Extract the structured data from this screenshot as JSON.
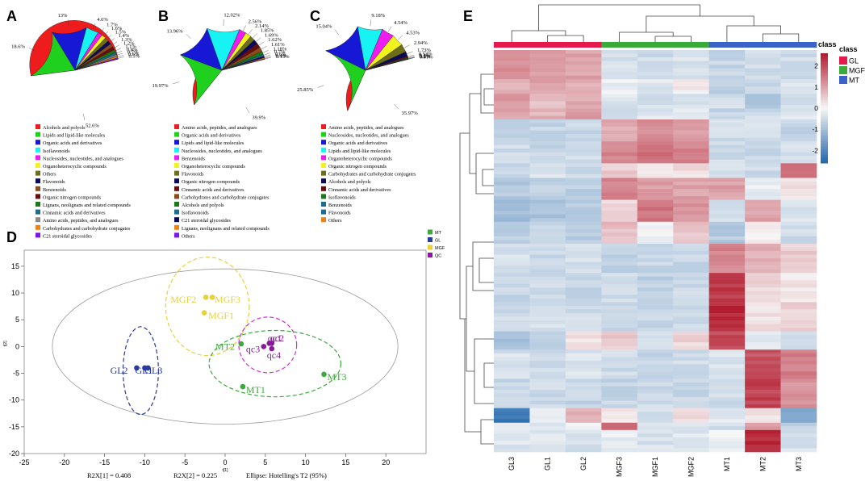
{
  "colors": {
    "red": "#ee1c1c",
    "green": "#1fd01f",
    "blue": "#1717d6",
    "cyan": "#17f2f2",
    "magenta": "#ee1cee",
    "yellow": "#f2f21c",
    "olive": "#6e6e1a",
    "navy": "#0b0b5a",
    "brown": "#8b4b16",
    "maroon": "#6b0b0b",
    "darkgreen": "#187a18",
    "teal": "#1c6e8c",
    "orange": "#ee8212",
    "purple": "#8212ee",
    "gray": "#8a8a8a",
    "heat_low": "#2166ac",
    "heat_mid": "#f7f7f7",
    "heat_high": "#b2182b",
    "class_GL": "#e41a4c",
    "class_MGF": "#3aaa3a",
    "class_MT": "#3a62c8"
  },
  "panels": {
    "A": {
      "letter": "A"
    },
    "B": {
      "letter": "B"
    },
    "C": {
      "letter": "C"
    },
    "D": {
      "letter": "D"
    },
    "E": {
      "letter": "E"
    }
  },
  "chart_data": [
    {
      "type": "pie",
      "panel": "A",
      "slices": [
        {
          "label": "Alcohols and polyols",
          "value": 52.6,
          "text": "52.6%",
          "color": "red"
        },
        {
          "label": "Lipids and lipid-like molecules",
          "value": 18.6,
          "text": "18.6%",
          "color": "green"
        },
        {
          "label": "Organic acids and derivatives",
          "value": 13.0,
          "text": "13%",
          "color": "blue"
        },
        {
          "label": "Isoflavonoids",
          "value": 4.6,
          "text": "4.6%",
          "color": "cyan"
        },
        {
          "label": "Nucleosides, nucleotides, and analogues",
          "value": 1.7,
          "text": "1.7%",
          "color": "magenta"
        },
        {
          "label": "Organoheterocyclic compounds",
          "value": 1.6,
          "text": "1.6%",
          "color": "yellow"
        },
        {
          "label": "Others",
          "value": 1.5,
          "text": "1.5%",
          "color": "olive"
        },
        {
          "label": "Flavonoids",
          "value": 1.4,
          "text": "1.4%",
          "color": "navy"
        },
        {
          "label": "Benzenoids",
          "value": 1.3,
          "text": "1.3%",
          "color": "brown"
        },
        {
          "label": "Organic nitrogen compounds",
          "value": 1.2,
          "text": "1.2%",
          "color": "maroon"
        },
        {
          "label": "Lignans, neolignans and related compounds",
          "value": 1.1,
          "text": "1.1%",
          "color": "darkgreen"
        },
        {
          "label": "Cinnamic acids and derivatives",
          "value": 0.8,
          "text": "0.8%",
          "color": "teal"
        },
        {
          "label": "Amino acids, peptides, and analogues",
          "value": 0.7,
          "text": "0.7%",
          "color": "gray"
        },
        {
          "label": "Carbohydrates and carbohydrate conjugates",
          "value": 0.6,
          "text": "0.6%",
          "color": "orange"
        },
        {
          "label": "C21 steroidal glycosides",
          "value": 0.5,
          "text": "0.5%",
          "color": "purple"
        }
      ]
    },
    {
      "type": "pie",
      "panel": "B",
      "slices": [
        {
          "label": "Amino acids, peptides, and analogues",
          "value": 39.9,
          "text": "39.9%",
          "color": "red"
        },
        {
          "label": "Organic acids and derivatives",
          "value": 19.97,
          "text": "19.97%",
          "color": "green"
        },
        {
          "label": "Lipids and lipid-like molecules",
          "value": 13.96,
          "text": "13.96%",
          "color": "blue"
        },
        {
          "label": "Nucleosides, nucleotides, and analogues",
          "value": 12.02,
          "text": "12.02%",
          "color": "cyan"
        },
        {
          "label": "Benzenoids",
          "value": 2.56,
          "text": "2.56%",
          "color": "magenta"
        },
        {
          "label": "Organoheterocyclic compounds",
          "value": 2.14,
          "text": "2.14%",
          "color": "yellow"
        },
        {
          "label": "Flavonoids",
          "value": 1.85,
          "text": "1.85%",
          "color": "olive"
        },
        {
          "label": "Organic nitrogen compounds",
          "value": 1.69,
          "text": "1.69%",
          "color": "navy"
        },
        {
          "label": "Cinnamic acids and derivatives",
          "value": 1.62,
          "text": "1.62%",
          "color": "maroon"
        },
        {
          "label": "Carbohydrates and carbohydrate conjugates",
          "value": 1.61,
          "text": "1.61%",
          "color": "brown"
        },
        {
          "label": "Alcohols and polyols",
          "value": 1.18,
          "text": "1.18%",
          "color": "darkgreen"
        },
        {
          "label": "Isoflavonoids",
          "value": 0.7,
          "text": "0.7%",
          "color": "teal"
        },
        {
          "label": "C21 steroidal glycosides",
          "value": 0.6,
          "text": "0.6%",
          "color": "navy"
        },
        {
          "label": "Lignans, neolignans and related compounds",
          "value": 0.4,
          "text": "0.4%",
          "color": "orange"
        },
        {
          "label": "Others",
          "value": 0.15,
          "text": "0.15%",
          "color": "purple"
        }
      ]
    },
    {
      "type": "pie",
      "panel": "C",
      "slices": [
        {
          "label": "Amino acids, peptides, and analogues",
          "value": 35.97,
          "text": "35.97%",
          "color": "red"
        },
        {
          "label": "Nucleosides, nucleotides, and analogues",
          "value": 25.85,
          "text": "25.85%",
          "color": "green"
        },
        {
          "label": "Organic acids and derivatives",
          "value": 15.04,
          "text": "15.04%",
          "color": "blue"
        },
        {
          "label": "Lipids and lipid-like molecules",
          "value": 9.18,
          "text": "9.18%",
          "color": "cyan"
        },
        {
          "label": "Organoheterocyclic compounds",
          "value": 4.54,
          "text": "4.54%",
          "color": "magenta"
        },
        {
          "label": "Organic nitrogen compounds",
          "value": 4.53,
          "text": "4.53%",
          "color": "yellow"
        },
        {
          "label": "Carbohydrates and carbohydrate conjugates",
          "value": 2.94,
          "text": "2.94%",
          "color": "olive"
        },
        {
          "label": "Alcohols and polyols",
          "value": 1.73,
          "text": "1.73%",
          "color": "navy"
        },
        {
          "label": "Cinnamic acids and derivatives",
          "value": 0.53,
          "text": "0.53%",
          "color": "maroon"
        },
        {
          "label": "Isoflavonoids",
          "value": 0.3,
          "text": "0.3%",
          "color": "darkgreen"
        },
        {
          "label": "Benzenoids",
          "value": 0.2,
          "text": "0.2%",
          "color": "teal"
        },
        {
          "label": "Flavonoids",
          "value": 0.1,
          "text": "0.1%",
          "color": "teal"
        },
        {
          "label": "Others",
          "value": 0.01,
          "text": "0.01%",
          "color": "orange"
        }
      ]
    },
    {
      "type": "scatter",
      "panel": "D",
      "xlabel": "t[1]",
      "ylabel": "t[2]",
      "xlim": [
        -25,
        25
      ],
      "ylim": [
        -20,
        18
      ],
      "xticks": [
        -25,
        -20,
        -15,
        -10,
        -5,
        0,
        5,
        10,
        15,
        20
      ],
      "yticks": [
        -20,
        -15,
        -10,
        -5,
        0,
        5,
        10,
        15
      ],
      "legend": [
        {
          "name": "MT",
          "color": "#3aaa3a"
        },
        {
          "name": "GL",
          "color": "#2a3aa0"
        },
        {
          "name": "MGF",
          "color": "#e8d23a"
        },
        {
          "name": "QC",
          "color": "#8a1a9a"
        }
      ],
      "groups": [
        {
          "name": "GL",
          "color": "#2a3aa0",
          "ellipse_color": "#2a3aa0",
          "cx": -10.5,
          "cy": -4.5,
          "rx": 2.2,
          "ry": 8.2,
          "points": [
            {
              "label": "GL2",
              "x": -11,
              "y": -4
            },
            {
              "label": "GL1",
              "x": -10,
              "y": -4
            },
            {
              "label": "GL3",
              "x": -9.6,
              "y": -4
            }
          ]
        },
        {
          "name": "MGF",
          "color": "#e8d23a",
          "ellipse_color": "#e8d23a",
          "cx": -2.2,
          "cy": 7.5,
          "rx": 5.2,
          "ry": 9.2,
          "points": [
            {
              "label": "MGF2",
              "x": -2.4,
              "y": 9.2
            },
            {
              "label": "MGF3",
              "x": -1.6,
              "y": 9.2
            },
            {
              "label": "MGF1",
              "x": -2.6,
              "y": 6.3
            }
          ]
        },
        {
          "name": "MT",
          "color": "#3aaa3a",
          "ellipse_color": "#3aaa3a",
          "cx": 6.2,
          "cy": -3.2,
          "rx": 8.2,
          "ry": 6.2,
          "points": [
            {
              "label": "MT2",
              "x": 2,
              "y": 0.5
            },
            {
              "label": "MT1",
              "x": 2.2,
              "y": -7.5
            },
            {
              "label": "MT3",
              "x": 12.3,
              "y": -5.2
            }
          ]
        },
        {
          "name": "QC",
          "color": "#8a1a9a",
          "ellipse_color": "#d030d0",
          "cx": 5.3,
          "cy": 0.3,
          "rx": 3.6,
          "ry": 5.2,
          "points": [
            {
              "label": "qc1",
              "x": 5.5,
              "y": 0.6
            },
            {
              "label": "qc2",
              "x": 5.8,
              "y": 0.6
            },
            {
              "label": "qc3",
              "x": 4.8,
              "y": 0
            },
            {
              "label": "qc4",
              "x": 5.8,
              "y": -0.4
            }
          ]
        }
      ],
      "hotelling_ellipse": {
        "rx": 21.5,
        "ry": 14.5
      },
      "footer": [
        "R2X[1] = 0.408",
        "R2X[2] = 0.225",
        "Ellipse: Hotelling's T2 (95%)"
      ]
    },
    {
      "type": "heatmap",
      "panel": "E",
      "columns": [
        "GL3",
        "GL1",
        "GL2",
        "MGF3",
        "MGF1",
        "MGF2",
        "MT1",
        "MT2",
        "MT3"
      ],
      "column_classes": [
        "GL",
        "GL",
        "GL",
        "MGF",
        "MGF",
        "MGF",
        "MT",
        "MT",
        "MT"
      ],
      "legend_title": "class",
      "legend_entries": [
        "GL",
        "MGF",
        "MT"
      ],
      "colorbar_ticks": [
        2,
        1,
        0,
        -1,
        -2
      ],
      "colorbar_range": [
        -2.6,
        2.6
      ],
      "row_blocks": [
        {
          "rows": 8,
          "values": [
            1.2,
            1.1,
            1.0,
            -0.4,
            -0.5,
            -0.4,
            -0.6,
            -0.5,
            -0.5
          ]
        },
        {
          "rows": 4,
          "values": [
            0.9,
            1.0,
            0.8,
            -0.2,
            -0.3,
            0.1,
            -0.7,
            -0.6,
            -0.4
          ]
        },
        {
          "rows": 4,
          "values": [
            1.1,
            0.6,
            0.9,
            -0.3,
            -0.4,
            -0.3,
            -0.4,
            -0.8,
            -0.5
          ]
        },
        {
          "rows": 3,
          "values": [
            1.0,
            0.8,
            1.1,
            -0.5,
            -0.3,
            -0.3,
            -0.6,
            -0.5,
            -0.3
          ]
        },
        {
          "rows": 6,
          "values": [
            -0.7,
            -0.6,
            -0.6,
            0.9,
            1.2,
            1.1,
            -0.5,
            -0.4,
            -0.6
          ]
        },
        {
          "rows": 6,
          "values": [
            -0.5,
            -0.6,
            -0.5,
            1.3,
            1.6,
            1.4,
            -0.5,
            -0.6,
            -0.4
          ]
        },
        {
          "rows": 4,
          "values": [
            -0.6,
            -0.4,
            -0.5,
            0.5,
            0.2,
            0.3,
            -0.4,
            -0.5,
            1.6
          ]
        },
        {
          "rows": 6,
          "values": [
            -0.8,
            -0.7,
            -0.7,
            1.4,
            1.1,
            1.0,
            1.0,
            -0.2,
            0.3
          ]
        },
        {
          "rows": 6,
          "values": [
            -1.0,
            -0.9,
            -0.8,
            0.4,
            1.5,
            1.2,
            -0.5,
            1.0,
            -0.4
          ]
        },
        {
          "rows": 6,
          "values": [
            -0.7,
            -0.6,
            -0.7,
            0.7,
            -0.1,
            0.6,
            -0.8,
            0.2,
            -0.5
          ]
        },
        {
          "rows": 8,
          "values": [
            -0.4,
            -0.5,
            -0.4,
            -0.7,
            -0.6,
            -0.6,
            1.3,
            0.8,
            0.5
          ]
        },
        {
          "rows": 8,
          "values": [
            -0.6,
            -0.5,
            -0.6,
            -0.5,
            -0.7,
            -0.5,
            2.2,
            0.4,
            0.2
          ]
        },
        {
          "rows": 8,
          "values": [
            -0.5,
            -0.4,
            -0.5,
            -0.6,
            -0.6,
            -0.5,
            2.4,
            0.3,
            0.4
          ]
        },
        {
          "rows": 5,
          "values": [
            -0.9,
            -0.8,
            0.3,
            0.5,
            -0.3,
            0.4,
            2.0,
            -0.2,
            -0.4
          ]
        },
        {
          "rows": 8,
          "values": [
            -0.4,
            -0.5,
            -0.4,
            -0.5,
            -0.6,
            -0.5,
            -0.3,
            1.9,
            1.4
          ]
        },
        {
          "rows": 8,
          "values": [
            -0.6,
            -0.5,
            -0.6,
            -0.6,
            -0.5,
            -0.6,
            -0.5,
            2.1,
            1.2
          ]
        },
        {
          "rows": 4,
          "values": [
            -2.3,
            -0.3,
            0.9,
            0.2,
            -0.4,
            0.4,
            -0.2,
            0.3,
            -1.5
          ]
        },
        {
          "rows": 2,
          "values": [
            -0.3,
            -0.4,
            -0.2,
            1.8,
            -0.3,
            -0.4,
            -0.5,
            1.0,
            -0.6
          ]
        },
        {
          "rows": 6,
          "values": [
            -0.3,
            -0.3,
            -0.4,
            -0.2,
            -0.4,
            -0.3,
            -0.1,
            2.4,
            -0.4
          ]
        }
      ]
    }
  ]
}
